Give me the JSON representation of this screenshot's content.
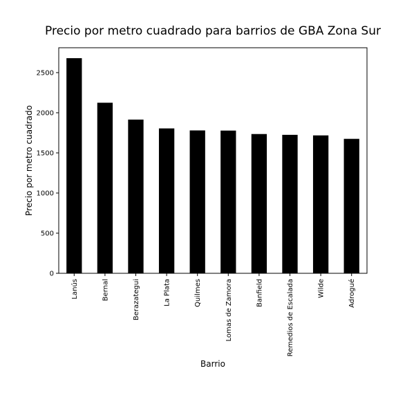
{
  "chart_data": {
    "type": "bar",
    "title": "Precio por metro cuadrado para barrios de GBA Zona Sur",
    "xlabel": "Barrio",
    "ylabel": "Precio por metro cuadrado",
    "categories": [
      "Lanús",
      "Bernal",
      "Berazategui",
      "La Plata",
      "Quilmes",
      "Lomas de Zamora",
      "Banfield",
      "Remedios de Escalada",
      "Wilde",
      "Adrogué"
    ],
    "values": [
      2680,
      2125,
      1915,
      1805,
      1780,
      1778,
      1735,
      1725,
      1718,
      1675
    ],
    "ylim": [
      0,
      2810
    ],
    "yticks": [
      0,
      500,
      1000,
      1500,
      2000,
      2500
    ],
    "bar_color": "#000000",
    "grid": false,
    "legend": false
  }
}
